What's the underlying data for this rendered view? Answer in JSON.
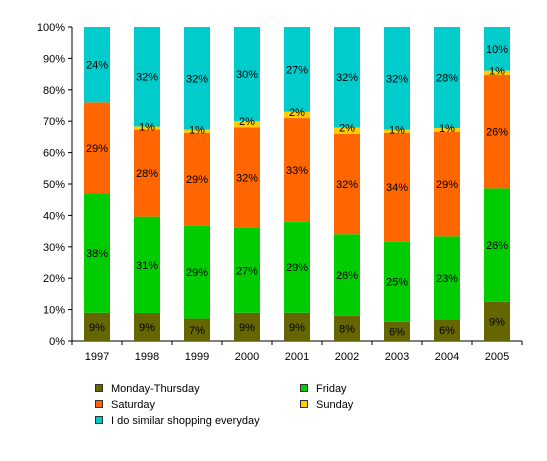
{
  "chart_data": {
    "type": "bar",
    "stacked": true,
    "percent_stacked": true,
    "categories": [
      "1997",
      "1998",
      "1999",
      "2000",
      "2001",
      "2002",
      "2003",
      "2004",
      "2005"
    ],
    "y_ticks": [
      "0%",
      "10%",
      "20%",
      "30%",
      "40%",
      "50%",
      "60%",
      "70%",
      "80%",
      "90%",
      "100%"
    ],
    "ylim": [
      0,
      100
    ],
    "grid": false,
    "legend_position": "bottom",
    "series": [
      {
        "name": "Monday-Thursday",
        "color": "#666600",
        "values": [
          9,
          9,
          7,
          9,
          9,
          8,
          6,
          6,
          9
        ],
        "labels": [
          "9%",
          "9%",
          "7%",
          "9%",
          "9%",
          "8%",
          "6%",
          "6%",
          "9%"
        ]
      },
      {
        "name": "Friday",
        "color": "#00cc00",
        "values": [
          38,
          31,
          29,
          27,
          29,
          26,
          25,
          23,
          26
        ],
        "labels": [
          "38%",
          "31%",
          "29%",
          "27%",
          "29%",
          "26%",
          "25%",
          "23%",
          "26%"
        ]
      },
      {
        "name": "Saturday",
        "color": "#ff6600",
        "values": [
          29,
          28,
          29,
          32,
          33,
          32,
          34,
          29,
          26
        ],
        "labels": [
          "29%",
          "28%",
          "29%",
          "32%",
          "33%",
          "32%",
          "34%",
          "29%",
          "26%"
        ]
      },
      {
        "name": "Sunday",
        "color": "#ffcc00",
        "values": [
          0,
          1,
          1,
          2,
          2,
          2,
          1,
          1,
          1
        ],
        "labels": [
          "",
          "1%",
          "1%",
          "2%",
          "2%",
          "2%",
          "1%",
          "1%",
          "1%"
        ]
      },
      {
        "name": "I do similar shopping everyday",
        "color": "#00cccc",
        "values": [
          24,
          32,
          32,
          30,
          27,
          32,
          32,
          28,
          10
        ],
        "labels": [
          "24%",
          "32%",
          "32%",
          "30%",
          "27%",
          "32%",
          "32%",
          "28%",
          "10%"
        ]
      }
    ]
  }
}
